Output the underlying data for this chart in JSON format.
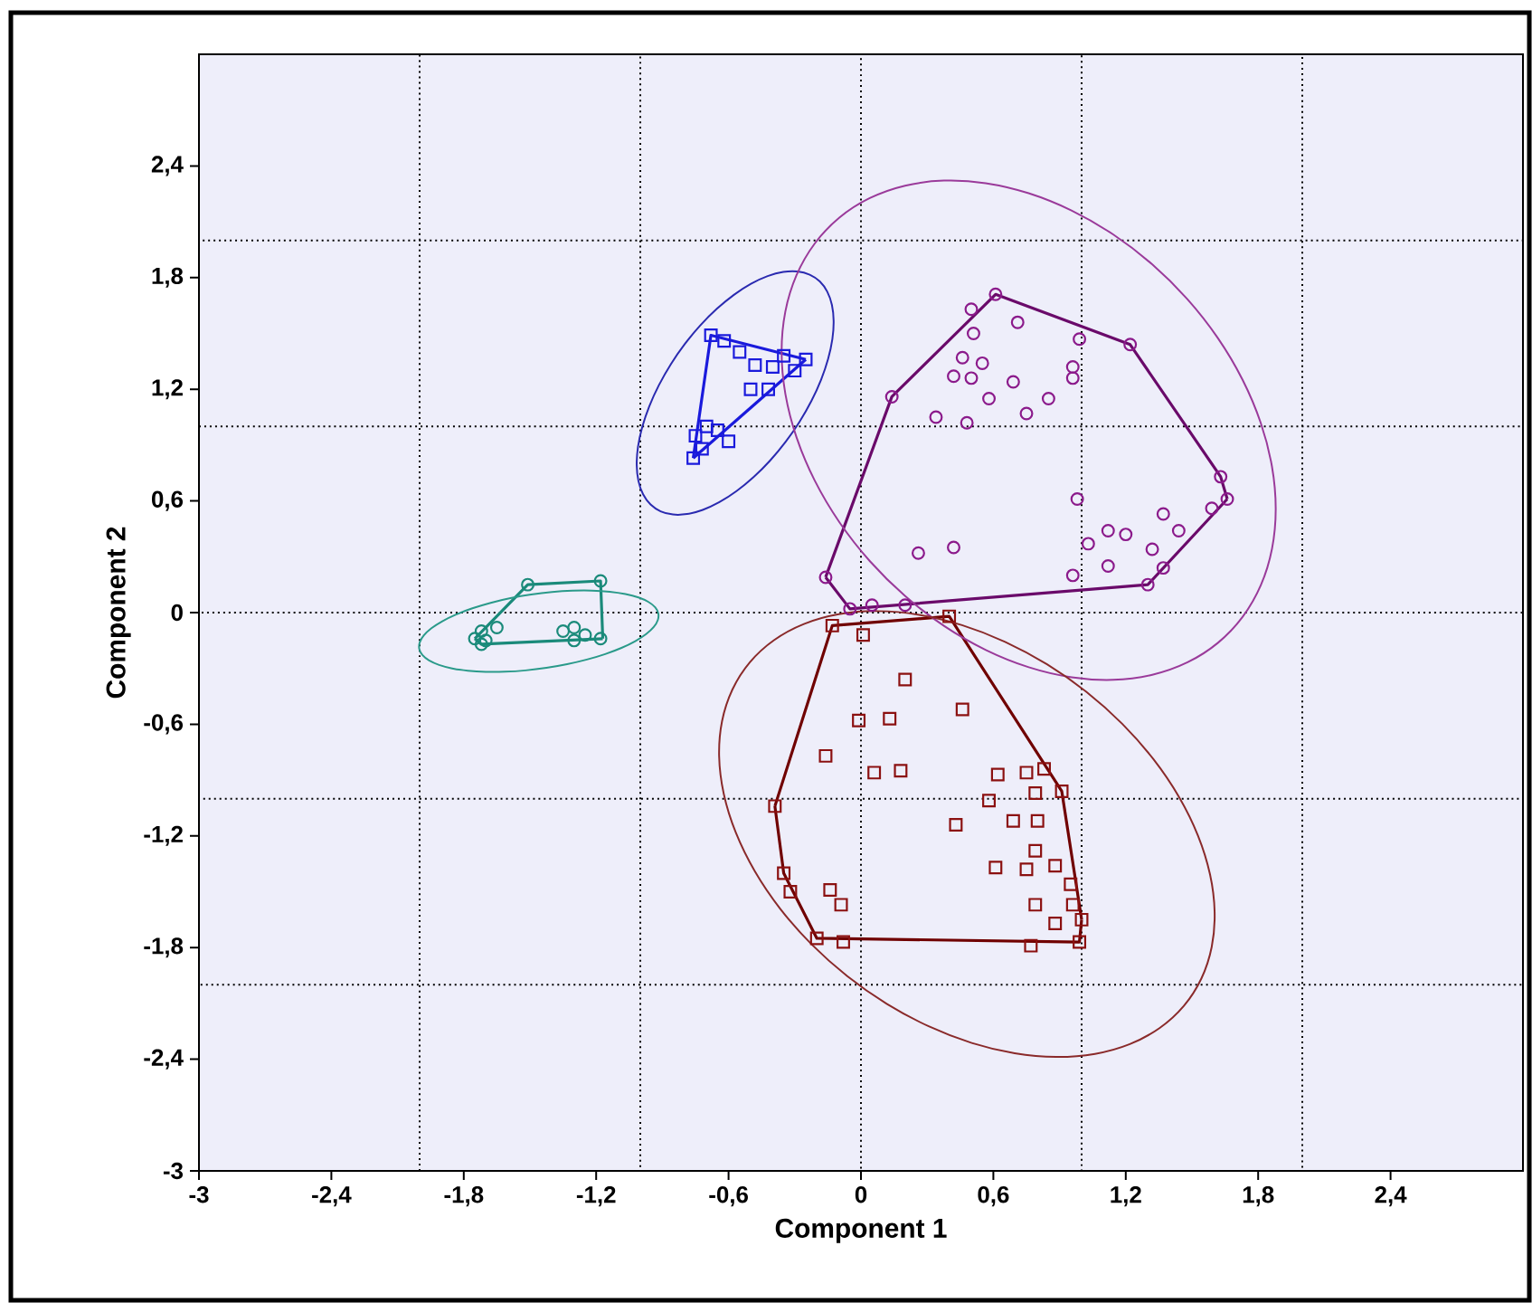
{
  "chart_data": {
    "type": "scatter",
    "xlabel": "Component 1",
    "ylabel": "Component 2",
    "xlim": [
      -3,
      3
    ],
    "ylim": [
      -3,
      3
    ],
    "xticks": [
      -3,
      {
        "value": -2.4,
        "label": "-2,4"
      },
      {
        "value": -1.8,
        "label": "-1,8"
      },
      {
        "value": -1.2,
        "label": "-1,2"
      },
      {
        "value": -0.6,
        "label": "-0,6"
      },
      0,
      {
        "value": 0.6,
        "label": "0,6"
      },
      {
        "value": 1.2,
        "label": "1,2"
      },
      {
        "value": 1.8,
        "label": "1,8"
      },
      {
        "value": 2.4,
        "label": "2,4"
      }
    ],
    "yticks": [
      -3,
      {
        "value": -2.4,
        "label": "-2,4"
      },
      {
        "value": -1.8,
        "label": "-1,8"
      },
      {
        "value": -1.2,
        "label": "-1,2"
      },
      {
        "value": -0.6,
        "label": "-0,6"
      },
      0,
      {
        "value": 0.6,
        "label": "0,6"
      },
      {
        "value": 1.2,
        "label": "1,2"
      },
      {
        "value": 1.8,
        "label": "1,8"
      },
      {
        "value": 2.4,
        "label": "2,4"
      }
    ],
    "ref_lines": [
      {
        "axis": "x",
        "value": -2,
        "color": "#000000",
        "line_style": "dotted"
      },
      {
        "axis": "x",
        "value": -1,
        "color": "#000000",
        "line_style": "dotted"
      },
      {
        "axis": "x",
        "value": 0,
        "color": "#000000",
        "line_style": "dotted"
      },
      {
        "axis": "x",
        "value": 1,
        "color": "#000000",
        "line_style": "dotted"
      },
      {
        "axis": "x",
        "value": 2,
        "color": "#000000",
        "line_style": "dotted"
      },
      {
        "axis": "y",
        "value": -2,
        "color": "#000000",
        "line_style": "dotted"
      },
      {
        "axis": "y",
        "value": -1,
        "color": "#000000",
        "line_style": "dotted"
      },
      {
        "axis": "y",
        "value": 0,
        "color": "#000000",
        "line_style": "dotted"
      },
      {
        "axis": "y",
        "value": 1,
        "color": "#000000",
        "line_style": "dotted"
      },
      {
        "axis": "y",
        "value": 2,
        "color": "#000000",
        "line_style": "dotted"
      }
    ],
    "series": [
      {
        "marker": "circle",
        "color": "#1a8a7a",
        "x": [
          -1.75,
          -1.72,
          -1.7,
          -1.65,
          -1.51,
          -1.18,
          -1.18,
          -1.3,
          -1.25,
          -1.3,
          -1.35,
          -1.72
        ],
        "values": [
          -0.14,
          -0.1,
          -0.15,
          -0.08,
          0.15,
          0.17,
          -0.14,
          -0.08,
          -0.12,
          -0.15,
          -0.1,
          -0.17
        ]
      },
      {
        "type": "line",
        "color": "#1a8a7a",
        "x": [
          -1.75,
          -1.51,
          -1.18,
          -1.17
        ],
        "values": [
          -0.14,
          0.15,
          0.17,
          -0.14
        ]
      },
      {
        "type": "line",
        "color": "#1a8a7a",
        "x": [
          -1.75,
          -1.72,
          -1.17
        ],
        "values": [
          -0.14,
          -0.17,
          -0.14
        ]
      },
      {
        "marker": "square",
        "color": "#1a1adc",
        "x": [
          -0.68,
          -0.62,
          -0.55,
          -0.48,
          -0.4,
          -0.35,
          -0.3,
          -0.25,
          -0.5,
          -0.42,
          -0.75,
          -0.7,
          -0.65,
          -0.72,
          -0.6,
          -0.76
        ],
        "values": [
          1.49,
          1.46,
          1.4,
          1.33,
          1.32,
          1.38,
          1.3,
          1.36,
          1.2,
          1.2,
          0.95,
          1.0,
          0.98,
          0.88,
          0.92,
          0.83
        ]
      },
      {
        "type": "line",
        "color": "#1a1adc",
        "x": [
          -0.76,
          -0.68,
          -0.25
        ],
        "values": [
          0.83,
          1.49,
          1.36
        ]
      },
      {
        "type": "line",
        "color": "#1a1adc",
        "x": [
          -0.76,
          -0.25
        ],
        "values": [
          0.83,
          1.36
        ]
      },
      {
        "marker": "circle",
        "color": "#8b1a8b",
        "x": [
          0.61,
          0.5,
          0.71,
          0.51,
          0.99,
          1.22,
          0.46,
          0.55,
          0.42,
          0.5,
          0.69,
          0.96,
          0.96,
          0.58,
          0.85,
          0.75,
          0.34,
          0.48,
          0.14,
          0.98,
          1.63,
          1.66,
          1.37,
          1.12,
          1.2,
          1.44,
          1.59,
          1.03,
          1.32,
          0.96,
          1.12,
          1.37,
          1.3,
          0.26,
          0.42,
          -0.16,
          -0.05,
          0.05,
          0.2
        ],
        "values": [
          1.71,
          1.63,
          1.56,
          1.5,
          1.47,
          1.44,
          1.37,
          1.34,
          1.27,
          1.26,
          1.24,
          1.32,
          1.26,
          1.15,
          1.15,
          1.07,
          1.05,
          1.02,
          1.16,
          0.61,
          0.73,
          0.61,
          0.53,
          0.44,
          0.42,
          0.44,
          0.56,
          0.37,
          0.34,
          0.2,
          0.25,
          0.24,
          0.15,
          0.32,
          0.35,
          0.19,
          0.02,
          0.04,
          0.04
        ]
      },
      {
        "type": "line",
        "color": "#6a0a6a",
        "x": [
          -0.16,
          0.14,
          0.61,
          1.22,
          1.63,
          1.66
        ],
        "values": [
          0.19,
          1.16,
          1.71,
          1.44,
          0.73,
          0.61
        ]
      },
      {
        "type": "line",
        "color": "#6a0a6a",
        "x": [
          -0.16,
          -0.05,
          1.3,
          1.66
        ],
        "values": [
          0.19,
          0.02,
          0.15,
          0.61
        ]
      },
      {
        "marker": "square",
        "color": "#8b1010",
        "x": [
          -0.13,
          0.01,
          0.4,
          0.2,
          -0.01,
          0.13,
          0.46,
          -0.16,
          0.06,
          0.18,
          0.62,
          0.75,
          0.83,
          0.91,
          0.58,
          0.79,
          -0.39,
          0.43,
          0.69,
          0.8,
          0.79,
          0.61,
          0.75,
          0.88,
          -0.35,
          0.95,
          -0.32,
          -0.14,
          -0.09,
          0.79,
          0.88,
          1.0,
          -0.2,
          -0.08,
          0.77,
          0.99,
          0.96
        ],
        "values": [
          -0.07,
          -0.12,
          -0.02,
          -0.36,
          -0.58,
          -0.57,
          -0.52,
          -0.77,
          -0.86,
          -0.85,
          -0.87,
          -0.86,
          -0.84,
          -0.96,
          -1.01,
          -0.97,
          -1.04,
          -1.14,
          -1.12,
          -1.12,
          -1.28,
          -1.37,
          -1.38,
          -1.36,
          -1.4,
          -1.46,
          -1.5,
          -1.49,
          -1.57,
          -1.57,
          -1.67,
          -1.65,
          -1.75,
          -1.77,
          -1.79,
          -1.77,
          -1.57
        ]
      },
      {
        "type": "line",
        "color": "#700000",
        "x": [
          -0.39,
          -0.13,
          0.4,
          0.91,
          1.0
        ],
        "values": [
          -1.04,
          -0.07,
          -0.02,
          -0.96,
          -1.65
        ]
      },
      {
        "type": "line",
        "color": "#700000",
        "x": [
          -0.39,
          -0.35,
          -0.2,
          0.99,
          1.0
        ],
        "values": [
          -1.04,
          -1.4,
          -1.75,
          -1.77,
          -1.65
        ]
      }
    ]
  }
}
